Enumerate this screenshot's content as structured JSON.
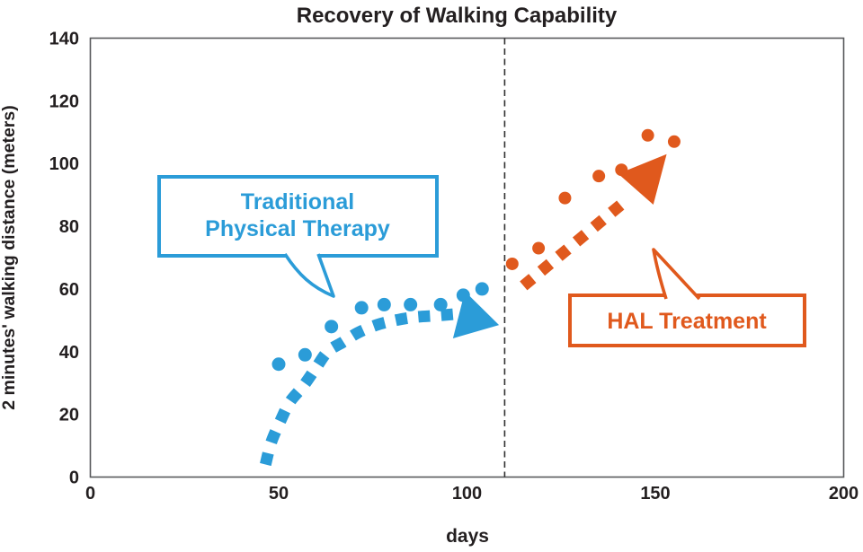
{
  "title": "Recovery of Walking Capability",
  "chart_data": {
    "type": "scatter",
    "title": "Recovery of Walking Capability",
    "xlabel": "days",
    "ylabel": "2 minutes' walking distance (meters)",
    "xlim": [
      0,
      200
    ],
    "ylim": [
      0,
      140
    ],
    "x_ticks": [
      0,
      50,
      100,
      150,
      200
    ],
    "y_ticks": [
      0,
      20,
      40,
      60,
      80,
      100,
      120,
      140
    ],
    "grid": false,
    "legend_position": "none",
    "divider_x": 110,
    "divider_style": "dashed-vertical",
    "colors": {
      "blue": "#2b9cd8",
      "orange": "#e0591d",
      "text": "#231f20",
      "plot_border": "#58595b"
    },
    "series": [
      {
        "name": "Traditional Physical Therapy",
        "color": "#2b9cd8",
        "marker": "circle",
        "points": [
          [
            50,
            36
          ],
          [
            57,
            39
          ],
          [
            64,
            48
          ],
          [
            72,
            54
          ],
          [
            78,
            55
          ],
          [
            85,
            55
          ],
          [
            93,
            55
          ],
          [
            99,
            58
          ],
          [
            104,
            60
          ]
        ],
        "trend": [
          [
            46.5,
            4
          ],
          [
            48,
            11
          ],
          [
            50.5,
            18
          ],
          [
            53,
            24
          ],
          [
            56.5,
            29
          ],
          [
            60,
            35
          ],
          [
            63,
            40
          ],
          [
            67,
            43
          ],
          [
            71,
            46
          ],
          [
            76,
            48.5
          ],
          [
            81,
            50
          ],
          [
            86,
            51
          ],
          [
            92,
            51.5
          ],
          [
            97,
            52
          ],
          [
            108.5,
            48.5
          ]
        ],
        "trend_style": "dashed-arrow",
        "callout": {
          "lines": [
            "Traditional",
            "Physical Therapy"
          ]
        }
      },
      {
        "name": "HAL Treatment",
        "color": "#e0591d",
        "marker": "circle",
        "points": [
          [
            112,
            68
          ],
          [
            119,
            73
          ],
          [
            126,
            89
          ],
          [
            135,
            96
          ],
          [
            141,
            98
          ],
          [
            148,
            109
          ],
          [
            155,
            107
          ]
        ],
        "trend": [
          [
            115,
            61
          ],
          [
            142,
            88
          ],
          [
            153,
            103
          ]
        ],
        "trend_style": "dashed-arrow",
        "callout": {
          "lines": [
            "HAL Treatment"
          ]
        }
      }
    ]
  }
}
